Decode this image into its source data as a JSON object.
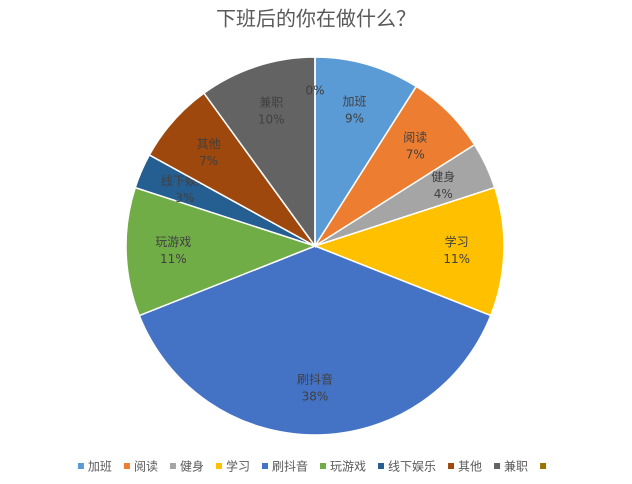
{
  "chart_data": {
    "type": "pie",
    "title": "下班后的你在做什么？",
    "categories": [
      "加班",
      "阅读",
      "健身",
      "学习",
      "刷抖音",
      "玩游戏",
      "线下娱乐",
      "其他",
      "兼职",
      null
    ],
    "values": [
      9,
      7,
      4,
      11,
      38,
      11,
      3,
      7,
      10,
      0
    ],
    "value_labels": [
      "9%",
      "7%",
      "4%",
      "11%",
      "38%",
      "11%",
      "3%",
      "7%",
      "10%",
      "0%"
    ],
    "colors": [
      "#5b9bd5",
      "#ed7d31",
      "#a5a5a5",
      "#ffc000",
      "#4472c4",
      "#70ad47",
      "#255e91",
      "#9e480e",
      "#636363",
      "#997300"
    ],
    "legend": "bottom"
  }
}
